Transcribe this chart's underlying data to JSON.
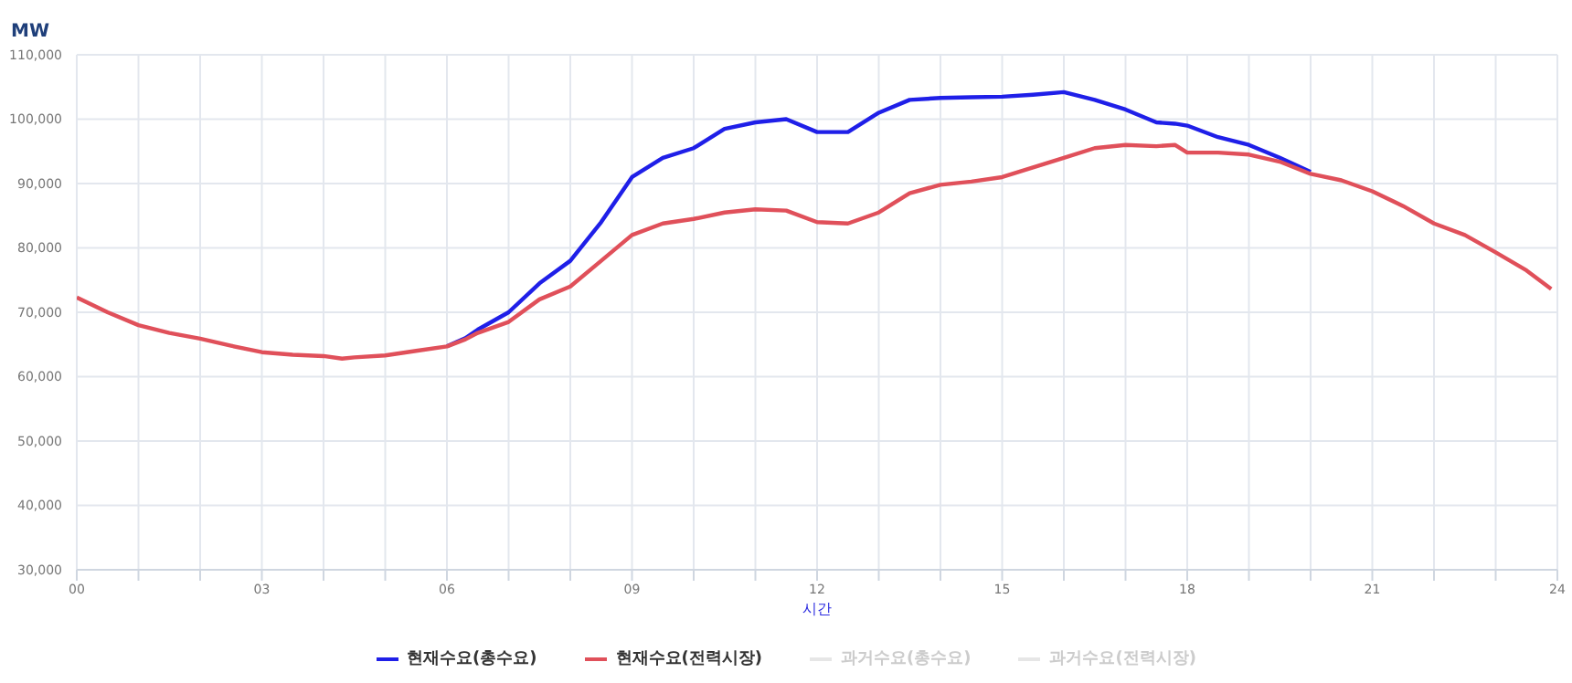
{
  "chart_data": {
    "type": "line",
    "ylabel": "MW",
    "xlabel": "시간",
    "x": [
      0,
      0.5,
      1,
      1.5,
      2,
      2.5,
      3,
      3.5,
      4,
      4.3,
      4.5,
      5,
      5.5,
      6,
      6.3,
      6.5,
      7,
      7.5,
      8,
      8.5,
      9,
      9.5,
      10,
      10.5,
      11,
      11.5,
      12,
      12.5,
      13,
      13.5,
      14,
      14.5,
      15,
      15.5,
      16,
      16.5,
      17,
      17.5,
      17.8,
      18,
      18.5,
      19,
      19.5,
      20,
      20.5,
      21,
      21.5,
      22,
      22.5,
      23,
      23.5,
      23.9
    ],
    "series": [
      {
        "name": "현재수요(총수요)",
        "color": "#1f1fe8",
        "values": [
          null,
          null,
          null,
          null,
          null,
          null,
          null,
          null,
          null,
          null,
          null,
          null,
          null,
          64700,
          66000,
          67300,
          70000,
          74500,
          78000,
          84000,
          91000,
          94000,
          95500,
          98500,
          99500,
          100000,
          98000,
          98000,
          101000,
          103000,
          103300,
          103400,
          103500,
          103800,
          104200,
          103000,
          101500,
          99500,
          99300,
          99000,
          97200,
          96000,
          94000,
          91800,
          null,
          null,
          null,
          null,
          null,
          null,
          null,
          null
        ]
      },
      {
        "name": "현재수요(전력시장)",
        "color": "#e0505a",
        "values": [
          72300,
          70000,
          68000,
          66800,
          65900,
          64800,
          63800,
          63400,
          63200,
          62800,
          63000,
          63300,
          64000,
          64700,
          65800,
          66800,
          68500,
          72000,
          74000,
          78000,
          82000,
          83800,
          84500,
          85500,
          86000,
          85800,
          84000,
          83800,
          85500,
          88500,
          89800,
          90300,
          91000,
          92500,
          94000,
          95500,
          96000,
          95800,
          96000,
          94800,
          94800,
          94500,
          93400,
          91500,
          90500,
          88800,
          86500,
          83800,
          82000,
          79300,
          76500,
          73600
        ]
      },
      {
        "name": "과거수요(총수요)",
        "color": "#e6e6e6",
        "values": [
          null,
          null,
          null,
          null,
          null,
          null,
          null,
          null,
          null,
          null,
          null,
          null,
          null,
          null,
          null,
          null,
          null,
          null,
          null,
          null,
          null,
          null,
          null,
          null,
          null,
          null,
          null,
          null,
          null,
          null,
          null,
          null,
          null,
          null,
          null,
          null,
          null,
          null,
          null,
          null,
          null,
          null,
          null,
          null,
          null,
          null,
          null,
          null,
          null,
          null,
          null,
          null
        ]
      },
      {
        "name": "과거수요(전력시장)",
        "color": "#e6e6e6",
        "values": [
          null,
          null,
          null,
          null,
          null,
          null,
          null,
          null,
          null,
          null,
          null,
          null,
          null,
          null,
          null,
          null,
          null,
          null,
          null,
          null,
          null,
          null,
          null,
          null,
          null,
          null,
          null,
          null,
          null,
          null,
          null,
          null,
          null,
          null,
          null,
          null,
          null,
          null,
          null,
          null,
          null,
          null,
          null,
          null,
          null,
          null,
          null,
          null,
          null,
          null,
          null,
          null
        ]
      }
    ],
    "xlim": [
      0,
      24
    ],
    "xticks": [
      {
        "value": 0,
        "label": "00"
      },
      {
        "value": 1,
        "label": null
      },
      {
        "value": 2,
        "label": null
      },
      {
        "value": 3,
        "label": "03"
      },
      {
        "value": 4,
        "label": null
      },
      {
        "value": 5,
        "label": null
      },
      {
        "value": 6,
        "label": "06"
      },
      {
        "value": 7,
        "label": null
      },
      {
        "value": 8,
        "label": null
      },
      {
        "value": 9,
        "label": "09"
      },
      {
        "value": 10,
        "label": null
      },
      {
        "value": 11,
        "label": null
      },
      {
        "value": 12,
        "label": "12"
      },
      {
        "value": 13,
        "label": null
      },
      {
        "value": 14,
        "label": null
      },
      {
        "value": 15,
        "label": "15"
      },
      {
        "value": 16,
        "label": null
      },
      {
        "value": 17,
        "label": null
      },
      {
        "value": 18,
        "label": "18"
      },
      {
        "value": 19,
        "label": null
      },
      {
        "value": 20,
        "label": null
      },
      {
        "value": 21,
        "label": "21"
      },
      {
        "value": 22,
        "label": null
      },
      {
        "value": 23,
        "label": null
      },
      {
        "value": 24,
        "label": "24"
      }
    ],
    "ylim": [
      30000,
      110000
    ],
    "yticks": [
      {
        "value": 30000,
        "label": "30,000"
      },
      {
        "value": 40000,
        "label": "40,000"
      },
      {
        "value": 50000,
        "label": "50,000"
      },
      {
        "value": 60000,
        "label": "60,000"
      },
      {
        "value": 70000,
        "label": "70,000"
      },
      {
        "value": 80000,
        "label": "80,000"
      },
      {
        "value": 90000,
        "label": "90,000"
      },
      {
        "value": 100000,
        "label": "100,000"
      },
      {
        "value": 110000,
        "label": "110,000"
      }
    ],
    "grid": true,
    "legend": "bottom",
    "marker": "none",
    "line_style": "solid"
  }
}
